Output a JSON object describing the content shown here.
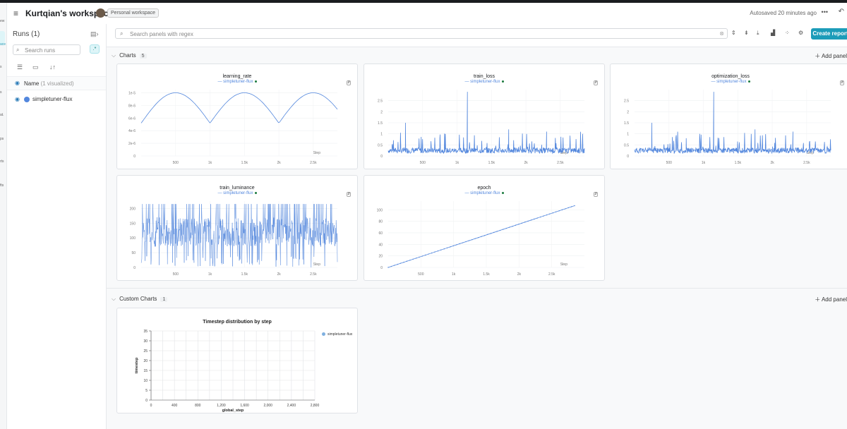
{
  "header": {
    "title": "Kurtqian's workspace",
    "badge": "Personal workspace",
    "autosaved": "Autosaved 20 minutes ago"
  },
  "leftrail": {
    "items": [
      "ew",
      "ace",
      "s",
      "s",
      "at.",
      "ps",
      "rts",
      "fts"
    ]
  },
  "sidebar": {
    "runs_title": "Runs (1)",
    "search_placeholder": "Search runs",
    "regex_label": ".*",
    "name_label": "Name",
    "name_sub": "(1 visualized)",
    "runs": [
      {
        "name": "simpletuner-flux",
        "color": "#5387dd"
      }
    ]
  },
  "main": {
    "search_placeholder": "Search panels with regex",
    "create_report": "Create report"
  },
  "charts_section": {
    "label": "Charts",
    "count": "5",
    "add_panel": "Add panel"
  },
  "custom_section": {
    "label": "Custom Charts",
    "count": "1",
    "add_panel": "Add panel"
  },
  "panels": {
    "learning_rate": {
      "title": "learning_rate",
      "legend": "simpletuner-flux"
    },
    "train_loss": {
      "title": "train_loss",
      "legend": "simpletuner-flux"
    },
    "optimization_loss": {
      "title": "optimization_loss",
      "legend": "simpletuner-flux"
    },
    "train_luminance": {
      "title": "train_luminance",
      "legend": "simpletuner-flux"
    },
    "epoch": {
      "title": "epoch",
      "legend": "simpletuner-flux"
    }
  },
  "custom_chart": {
    "title": "Timestep distribution by step",
    "legend": "simpletuner-flux",
    "xlabel": "global_step",
    "ylabel": "timestep"
  },
  "chart_data": [
    {
      "type": "line",
      "title": "learning_rate",
      "xlabel": "Step",
      "x": [
        0,
        300,
        500,
        750,
        1000,
        1300,
        1500,
        1750,
        2000,
        2300,
        2500,
        2750,
        2850
      ],
      "series": [
        {
          "name": "simpletuner-flux",
          "values": [
            5.2e-06,
            8.8e-06,
            1e-05,
            8.8e-06,
            5.2e-06,
            8.8e-06,
            1e-05,
            8.8e-06,
            5.2e-06,
            8.8e-06,
            1e-05,
            8.8e-06,
            8.2e-06
          ]
        }
      ],
      "xticks": [
        "500",
        "1k",
        "1.5k",
        "2k",
        "2.5k"
      ],
      "yticks": [
        "0",
        "2e-6",
        "4e-6",
        "6e-6",
        "8e-6",
        "1e-5"
      ],
      "xlim": [
        0,
        2850
      ],
      "ylim": [
        0,
        1.05e-05
      ],
      "color": "#5387dd"
    },
    {
      "type": "line",
      "title": "train_loss",
      "xlabel": "Step",
      "x": [
        0,
        200,
        250,
        500,
        750,
        1000,
        1150,
        1500,
        1750,
        2000,
        2300,
        2850
      ],
      "series": [
        {
          "name": "simpletuner-flux",
          "values": [
            0.25,
            0.3,
            1.5,
            0.25,
            0.8,
            0.3,
            2.9,
            0.3,
            1.2,
            0.3,
            1.1,
            0.25
          ]
        }
      ],
      "xticks": [
        "500",
        "1k",
        "1.5k",
        "2k",
        "2.5k"
      ],
      "yticks": [
        "0",
        "0.5",
        "1",
        "1.5",
        "2",
        "2.5"
      ],
      "xlim": [
        0,
        2850
      ],
      "ylim": [
        0,
        3
      ],
      "color": "#5387dd"
    },
    {
      "type": "line",
      "title": "optimization_loss",
      "xlabel": "Step",
      "x": [
        0,
        200,
        250,
        500,
        750,
        1000,
        1150,
        1500,
        1750,
        2000,
        2300,
        2850
      ],
      "series": [
        {
          "name": "simpletuner-flux",
          "values": [
            0.25,
            0.3,
            1.5,
            0.25,
            0.8,
            0.3,
            2.9,
            0.3,
            1.2,
            0.3,
            1.1,
            0.25
          ]
        }
      ],
      "xticks": [
        "500",
        "1k",
        "1.5k",
        "2k",
        "2.5k"
      ],
      "yticks": [
        "0",
        "0.5",
        "1",
        "1.5",
        "2",
        "2.5"
      ],
      "xlim": [
        0,
        2850
      ],
      "ylim": [
        0,
        3
      ],
      "color": "#5387dd"
    },
    {
      "type": "line",
      "title": "train_luminance",
      "xlabel": "Step",
      "x": [
        0,
        500,
        1000,
        1500,
        2000,
        2500,
        2850
      ],
      "series": [
        {
          "name": "simpletuner-flux",
          "values": [
            120,
            110,
            130,
            115,
            125,
            120,
            118
          ]
        }
      ],
      "xticks": [
        "500",
        "1k",
        "1.5k",
        "2k",
        "2.5k"
      ],
      "yticks": [
        "0",
        "50",
        "100",
        "150",
        "200"
      ],
      "xlim": [
        0,
        2850
      ],
      "ylim": [
        0,
        225
      ],
      "color": "#5387dd"
    },
    {
      "type": "line",
      "title": "epoch",
      "xlabel": "Step",
      "x": [
        0,
        2850
      ],
      "series": [
        {
          "name": "simpletuner-flux",
          "values": [
            0,
            107
          ]
        }
      ],
      "xticks": [
        "500",
        "1k",
        "1.5k",
        "2k",
        "2.5k"
      ],
      "yticks": [
        "0",
        "20",
        "40",
        "60",
        "80",
        "100"
      ],
      "xlim": [
        0,
        3000
      ],
      "ylim": [
        0,
        115
      ],
      "color": "#5387dd"
    },
    {
      "type": "scatter",
      "title": "Timestep distribution by step",
      "xlabel": "global_step",
      "ylabel": "timestep",
      "xticks": [
        "0",
        "400",
        "800",
        "1,200",
        "1,600",
        "2,000",
        "2,400",
        "2,800"
      ],
      "yticks": [
        "0",
        "5",
        "10",
        "15",
        "20",
        "25",
        "30",
        "35"
      ],
      "series": [
        {
          "name": "simpletuner-flux",
          "values": []
        }
      ],
      "grid": true,
      "legend": "top-right",
      "color": "#7fb0e0"
    }
  ]
}
